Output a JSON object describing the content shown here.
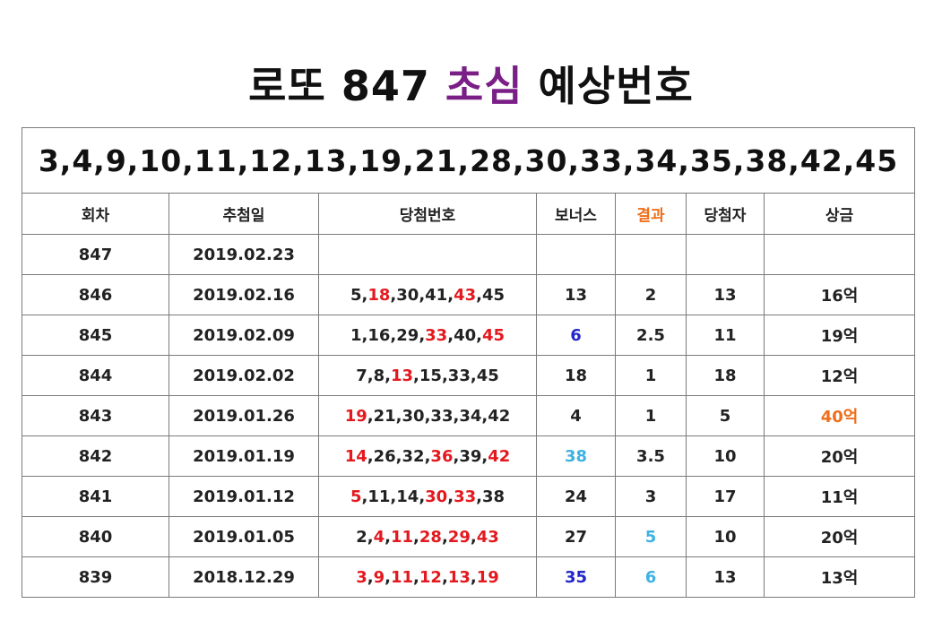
{
  "title": {
    "prefix": "로또 847 ",
    "highlight": "초심",
    "suffix": " 예상번호"
  },
  "predicted_numbers": "3,4,9,10,11,12,13,19,21,28,30,33,34,35,38,42,45",
  "columns": [
    "회차",
    "추첨일",
    "당첨번호",
    "보너스",
    "결과",
    "당첨자",
    "상금"
  ],
  "colors": {
    "red": "#e3191f",
    "orange": "#ef6e1a",
    "blue": "#2326c8",
    "cyan": "#3fb2e2",
    "purple": "#7a1f86"
  },
  "rows": [
    {
      "round": "847",
      "date": "2019.02.23",
      "numbers": [],
      "bonus": "",
      "bonus_color": "",
      "result": "",
      "result_color": "",
      "winners": "",
      "prize": "",
      "prize_color": ""
    },
    {
      "round": "846",
      "date": "2019.02.16",
      "numbers": [
        {
          "n": "5",
          "hit": false
        },
        {
          "n": "18",
          "hit": true
        },
        {
          "n": "30",
          "hit": false
        },
        {
          "n": "41",
          "hit": false
        },
        {
          "n": "43",
          "hit": true
        },
        {
          "n": "45",
          "hit": false
        }
      ],
      "bonus": "13",
      "bonus_color": "",
      "result": "2",
      "result_color": "",
      "winners": "13",
      "prize": "16억",
      "prize_color": ""
    },
    {
      "round": "845",
      "date": "2019.02.09",
      "numbers": [
        {
          "n": "1",
          "hit": false
        },
        {
          "n": "16",
          "hit": false
        },
        {
          "n": "29",
          "hit": false
        },
        {
          "n": "33",
          "hit": true
        },
        {
          "n": "40",
          "hit": false
        },
        {
          "n": "45",
          "hit": true
        }
      ],
      "bonus": "6",
      "bonus_color": "blue",
      "result": "2.5",
      "result_color": "",
      "winners": "11",
      "prize": "19억",
      "prize_color": ""
    },
    {
      "round": "844",
      "date": "2019.02.02",
      "numbers": [
        {
          "n": "7",
          "hit": false
        },
        {
          "n": "8",
          "hit": false
        },
        {
          "n": "13",
          "hit": true
        },
        {
          "n": "15",
          "hit": false
        },
        {
          "n": "33",
          "hit": false
        },
        {
          "n": "45",
          "hit": false
        }
      ],
      "bonus": "18",
      "bonus_color": "",
      "result": "1",
      "result_color": "",
      "winners": "18",
      "prize": "12억",
      "prize_color": ""
    },
    {
      "round": "843",
      "date": "2019.01.26",
      "numbers": [
        {
          "n": "19",
          "hit": true
        },
        {
          "n": "21",
          "hit": false
        },
        {
          "n": "30",
          "hit": false
        },
        {
          "n": "33",
          "hit": false
        },
        {
          "n": "34",
          "hit": false
        },
        {
          "n": "42",
          "hit": false
        }
      ],
      "bonus": "4",
      "bonus_color": "",
      "result": "1",
      "result_color": "",
      "winners": "5",
      "prize": "40억",
      "prize_color": "orange"
    },
    {
      "round": "842",
      "date": "2019.01.19",
      "numbers": [
        {
          "n": "14",
          "hit": true
        },
        {
          "n": "26",
          "hit": false
        },
        {
          "n": "32",
          "hit": false
        },
        {
          "n": "36",
          "hit": true
        },
        {
          "n": "39",
          "hit": false
        },
        {
          "n": "42",
          "hit": true
        }
      ],
      "bonus": "38",
      "bonus_color": "cyan",
      "result": "3.5",
      "result_color": "",
      "winners": "10",
      "prize": "20억",
      "prize_color": ""
    },
    {
      "round": "841",
      "date": "2019.01.12",
      "numbers": [
        {
          "n": "5",
          "hit": true
        },
        {
          "n": "11",
          "hit": false
        },
        {
          "n": "14",
          "hit": false
        },
        {
          "n": "30",
          "hit": true
        },
        {
          "n": "33",
          "hit": true
        },
        {
          "n": "38",
          "hit": false
        }
      ],
      "bonus": "24",
      "bonus_color": "",
      "result": "3",
      "result_color": "",
      "winners": "17",
      "prize": "11억",
      "prize_color": ""
    },
    {
      "round": "840",
      "date": "2019.01.05",
      "numbers": [
        {
          "n": "2",
          "hit": false
        },
        {
          "n": "4",
          "hit": true
        },
        {
          "n": "11",
          "hit": true
        },
        {
          "n": "28",
          "hit": true
        },
        {
          "n": "29",
          "hit": true
        },
        {
          "n": "43",
          "hit": true
        }
      ],
      "bonus": "27",
      "bonus_color": "",
      "result": "5",
      "result_color": "cyan",
      "winners": "10",
      "prize": "20억",
      "prize_color": ""
    },
    {
      "round": "839",
      "date": "2018.12.29",
      "numbers": [
        {
          "n": "3",
          "hit": true
        },
        {
          "n": "9",
          "hit": true
        },
        {
          "n": "11",
          "hit": true
        },
        {
          "n": "12",
          "hit": true
        },
        {
          "n": "13",
          "hit": true
        },
        {
          "n": "19",
          "hit": true
        }
      ],
      "bonus": "35",
      "bonus_color": "blue",
      "result": "6",
      "result_color": "cyan",
      "winners": "13",
      "prize": "13억",
      "prize_color": ""
    }
  ]
}
